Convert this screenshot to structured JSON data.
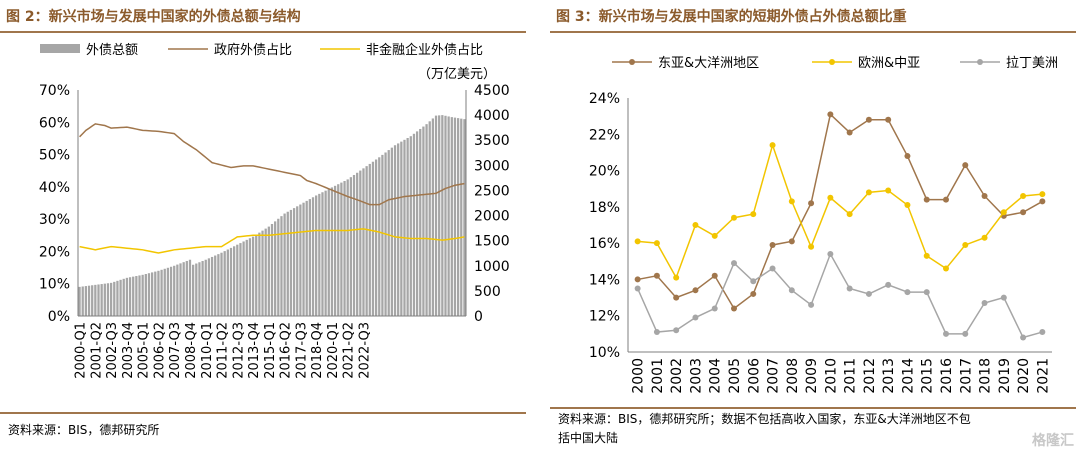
{
  "figure_left": {
    "title": "图 2：新兴市场与发展中国家的外债总额与结构",
    "source": "资料来源：BIS，德邦研究所",
    "unit_label": "（万亿美元）",
    "legend": [
      {
        "label": "外债总额",
        "color": "#a6a6a6"
      },
      {
        "label": "政府外债占比",
        "color": "#a0764c"
      },
      {
        "label": "非金融企业外债占比",
        "color": "#f2c500"
      }
    ]
  },
  "figure_right": {
    "title": "图 3：新兴市场与发展中国家的短期外债占外债总额比重",
    "source_lines": [
      "资料来源：BIS，德邦研究所；数据不包括高收入国家，东亚&大洋洲地区不包",
      "括中国大陆"
    ],
    "legend": [
      {
        "label": "东亚&大洋洲地区",
        "color": "#a0764c"
      },
      {
        "label": "欧洲&中亚",
        "color": "#f2c500"
      },
      {
        "label": "拉丁美洲",
        "color": "#a6a6a6"
      }
    ]
  },
  "watermark": "格隆汇",
  "chart_data": [
    {
      "type": "bar",
      "x_tick_labels": [
        "2000-Q1",
        "2001-Q2",
        "2002-Q3",
        "2003-Q4",
        "2005-Q1",
        "2006-Q2",
        "2007-Q3",
        "2008-Q4",
        "2010-Q1",
        "2011-Q2",
        "2012-Q3",
        "2013-Q4",
        "2015-Q1",
        "2016-Q2",
        "2017-Q3",
        "2018-Q4",
        "2020-Q1",
        "2021-Q2",
        "2022-Q3"
      ],
      "left_axis": {
        "ticks": [
          "0%",
          "10%",
          "20%",
          "30%",
          "40%",
          "50%",
          "60%",
          "70%"
        ],
        "ylim": [
          0,
          70
        ]
      },
      "right_axis": {
        "ticks": [
          "0",
          "500",
          "1000",
          "1500",
          "2000",
          "2500",
          "3000",
          "3500",
          "4000",
          "4500"
        ],
        "ylim": [
          0,
          4500
        ]
      },
      "series": [
        {
          "name": "外债总额",
          "axis": "right",
          "type": "bar",
          "anchors": [
            [
              0,
              580
            ],
            [
              5,
              620
            ],
            [
              10,
              660
            ],
            [
              15,
              760
            ],
            [
              20,
              820
            ],
            [
              25,
              900
            ],
            [
              30,
              1000
            ],
            [
              35,
              1120
            ],
            [
              36,
              1020
            ],
            [
              40,
              1120
            ],
            [
              45,
              1260
            ],
            [
              50,
              1420
            ],
            [
              55,
              1580
            ],
            [
              60,
              1780
            ],
            [
              65,
              2040
            ],
            [
              70,
              2220
            ],
            [
              75,
              2400
            ],
            [
              80,
              2560
            ],
            [
              85,
              2720
            ],
            [
              90,
              2940
            ],
            [
              95,
              3160
            ],
            [
              100,
              3400
            ],
            [
              105,
              3580
            ],
            [
              110,
              3820
            ],
            [
              113,
              3990
            ],
            [
              115,
              4000
            ],
            [
              118,
              3960
            ],
            [
              122,
              3920
            ]
          ]
        },
        {
          "name": "政府外债占比",
          "axis": "left",
          "type": "line",
          "anchors": [
            [
              0,
              55.5
            ],
            [
              2,
              57.5
            ],
            [
              5,
              59.5
            ],
            [
              8,
              59
            ],
            [
              10,
              58.2
            ],
            [
              15,
              58.5
            ],
            [
              20,
              57.5
            ],
            [
              25,
              57.2
            ],
            [
              30,
              56.5
            ],
            [
              33,
              54
            ],
            [
              37,
              51.5
            ],
            [
              42,
              47.5
            ],
            [
              48,
              46
            ],
            [
              52,
              46.5
            ],
            [
              55,
              46.5
            ],
            [
              60,
              45.5
            ],
            [
              65,
              44.5
            ],
            [
              70,
              43.5
            ],
            [
              72,
              42
            ],
            [
              75,
              41
            ],
            [
              80,
              39
            ],
            [
              85,
              37
            ],
            [
              88,
              36
            ],
            [
              92,
              34.5
            ],
            [
              95,
              34.5
            ],
            [
              98,
              36
            ],
            [
              103,
              37
            ],
            [
              108,
              37.5
            ],
            [
              113,
              38
            ],
            [
              116,
              39.5
            ],
            [
              119,
              40.5
            ],
            [
              122,
              41
            ]
          ]
        },
        {
          "name": "非金融企业外债占比",
          "axis": "left",
          "type": "line",
          "anchors": [
            [
              0,
              21.5
            ],
            [
              5,
              20.5
            ],
            [
              10,
              21.5
            ],
            [
              15,
              21
            ],
            [
              20,
              20.5
            ],
            [
              25,
              19.5
            ],
            [
              30,
              20.5
            ],
            [
              35,
              21
            ],
            [
              40,
              21.5
            ],
            [
              45,
              21.5
            ],
            [
              50,
              24.5
            ],
            [
              55,
              25
            ],
            [
              60,
              25
            ],
            [
              65,
              25.5
            ],
            [
              70,
              26
            ],
            [
              75,
              26.5
            ],
            [
              80,
              26.5
            ],
            [
              85,
              26.5
            ],
            [
              90,
              27
            ],
            [
              95,
              26
            ],
            [
              100,
              24.5
            ],
            [
              105,
              24
            ],
            [
              110,
              24
            ],
            [
              115,
              23.5
            ],
            [
              119,
              24
            ],
            [
              122,
              24.5
            ]
          ]
        }
      ]
    },
    {
      "type": "line",
      "categories": [
        "2000",
        "2001",
        "2002",
        "2003",
        "2004",
        "2005",
        "2006",
        "2007",
        "2008",
        "2009",
        "2010",
        "2011",
        "2012",
        "2013",
        "2014",
        "2015",
        "2016",
        "2017",
        "2018",
        "2019",
        "2020",
        "2021"
      ],
      "ylim": [
        10,
        24
      ],
      "y_ticks": [
        "10%",
        "12%",
        "14%",
        "16%",
        "18%",
        "20%",
        "22%",
        "24%"
      ],
      "series": [
        {
          "name": "东亚&大洋洲地区",
          "color": "#a0764c",
          "values": [
            14.0,
            14.2,
            13.0,
            13.4,
            14.2,
            12.4,
            13.2,
            15.9,
            16.1,
            18.2,
            23.1,
            22.1,
            22.8,
            22.8,
            20.8,
            18.4,
            18.4,
            20.3,
            18.6,
            17.5,
            17.7,
            18.3
          ]
        },
        {
          "name": "欧洲&中亚",
          "color": "#f2c500",
          "values": [
            16.1,
            16.0,
            14.1,
            17.0,
            16.4,
            17.4,
            17.6,
            21.4,
            18.3,
            15.8,
            18.5,
            17.6,
            18.8,
            18.9,
            18.1,
            15.3,
            14.6,
            15.9,
            16.3,
            17.7,
            18.6,
            18.7
          ]
        },
        {
          "name": "拉丁美洲",
          "color": "#a6a6a6",
          "values": [
            13.5,
            11.1,
            11.2,
            11.9,
            12.4,
            14.9,
            13.9,
            14.6,
            13.4,
            12.6,
            15.4,
            13.5,
            13.2,
            13.7,
            13.3,
            13.3,
            11.0,
            11.0,
            12.7,
            13.0,
            10.8,
            11.1
          ]
        }
      ]
    }
  ]
}
